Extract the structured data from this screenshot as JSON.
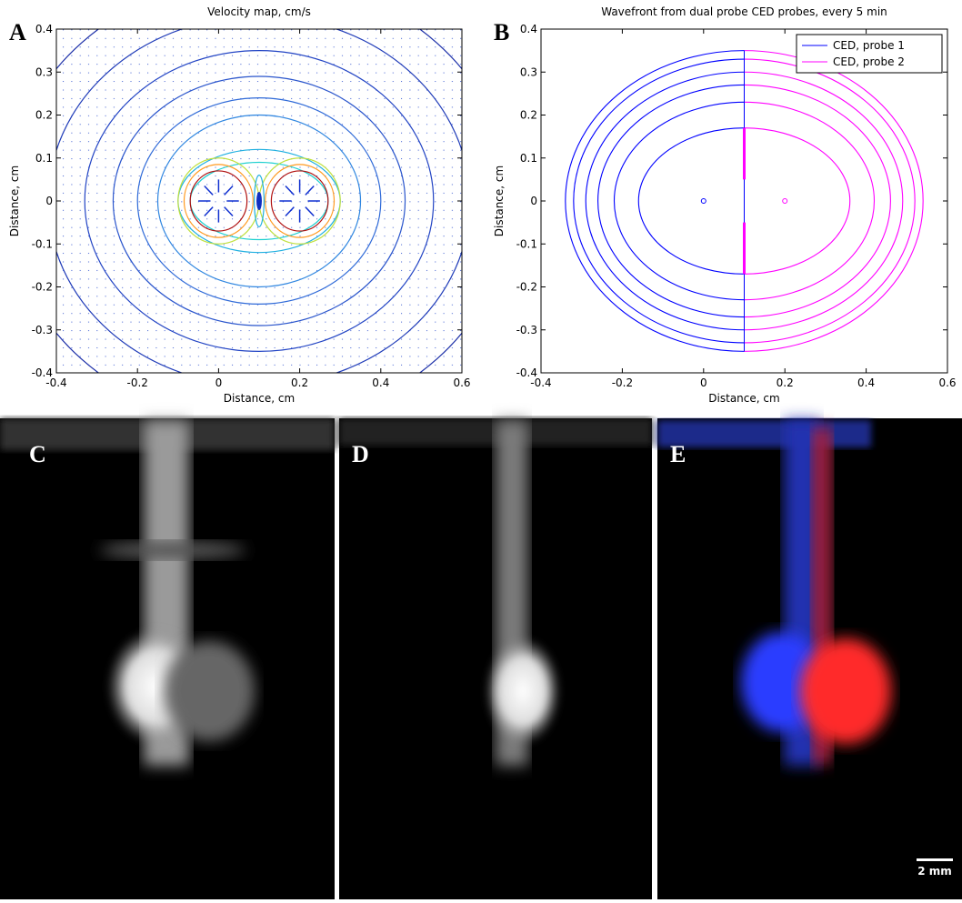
{
  "chart_data": [
    {
      "type": "contour",
      "panel": "A",
      "title": "Velocity map, cm/s",
      "x_label": "Distance, cm",
      "y_label": "Distance, cm",
      "xlim": [
        -0.4,
        0.6
      ],
      "ylim": [
        -0.4,
        0.4
      ],
      "xticks": [
        -0.4,
        -0.2,
        0,
        0.2,
        0.4,
        0.6
      ],
      "yticks": [
        -0.4,
        -0.3,
        -0.2,
        -0.1,
        0,
        0.1,
        0.2,
        0.3,
        0.4
      ]
    },
    {
      "type": "contour",
      "panel": "B",
      "title": "Wavefront from dual probe CED probes, every 5 min",
      "x_label": "Distance, cm",
      "y_label": "Distance, cm",
      "xlim": [
        -0.4,
        0.6
      ],
      "ylim": [
        -0.4,
        0.4
      ],
      "xticks": [
        -0.4,
        -0.2,
        0,
        0.2,
        0.4,
        0.6
      ],
      "yticks": [
        -0.4,
        -0.3,
        -0.2,
        -0.1,
        0,
        0.1,
        0.2,
        0.3,
        0.4
      ],
      "legend": "upper right",
      "series": [
        {
          "name": "CED, probe 1",
          "color": "#0000ff"
        },
        {
          "name": "CED, probe 2",
          "color": "#ff00ff"
        }
      ]
    }
  ],
  "images": [
    {
      "panel": "C"
    },
    {
      "panel": "D"
    },
    {
      "panel": "E",
      "scale_bar": "2 mm"
    }
  ]
}
